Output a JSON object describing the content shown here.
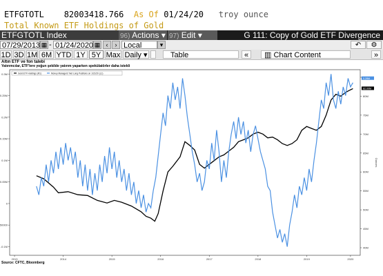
{
  "header": {
    "ticker": "ETFGTOTL",
    "value": "82003418.766",
    "as_of_label": "As Of",
    "as_of_date": "01/24/20",
    "unit": "troy ounce",
    "subtitle": "Total Known ETF Holdings of Gold"
  },
  "toolbar": {
    "index_label": "ETFGTOTL Index",
    "actions_num": "96)",
    "actions_label": "Actions",
    "edit_num": "97)",
    "edit_label": "Edit",
    "title": "G 111: Copy of Gold ETF Divergence"
  },
  "range": {
    "start": "07/29/2013",
    "end": "01/24/2020",
    "currency": "Local CCY"
  },
  "periods": [
    "1D",
    "3D",
    "1M",
    "6M",
    "YTD",
    "1Y",
    "5Y",
    "Max"
  ],
  "selected_period": "5Y",
  "frequency": "Daily",
  "table_tab": "Table",
  "chart_tab": "Chart Content",
  "chart_header": {
    "title": "Altın ETF ve fon talebi",
    "subtitle": "Yatırımcılar, ETF'lere yoğun şekilde yatırım yaparken spekülatörler daha istekli"
  },
  "source": "Source: CFTC, Bloomberg",
  "chart_data": {
    "type": "line",
    "legend": [
      {
        "name": "Gold ETF Holdings (R1)",
        "color": "#000000"
      },
      {
        "name": "Money Managers' Net Long Positions  on 1/21/20 (L1)",
        "color": "#4a90e2"
      }
    ],
    "x_ticks": [
      "2013",
      "2014",
      "2015",
      "2016",
      "2017",
      "2018",
      "2019",
      "2020"
    ],
    "left_ticks": [
      "0.3M",
      "0.25M",
      "0.2M",
      "0.15M",
      "0.1M",
      "0.05M",
      "0",
      "-50000",
      "-0.1M"
    ],
    "right_ticks": [
      "85M",
      "80M",
      "75M",
      "70M",
      "65M",
      "60M",
      "55M",
      "50M",
      "45M",
      "40M"
    ],
    "right_axis_label": "Ounces",
    "left_range": [
      -0.12,
      0.31
    ],
    "right_range": [
      38,
      87
    ],
    "last_values": {
      "etf": "82.00M",
      "net_long": "0.28M"
    },
    "series": [
      {
        "name": "Gold ETF Holdings (R1)",
        "axis": "right",
        "color": "#000000",
        "points": [
          [
            2013.55,
            59.0
          ],
          [
            2013.7,
            58.2
          ],
          [
            2013.9,
            56.0
          ],
          [
            2014.0,
            54.5
          ],
          [
            2014.2,
            54.8
          ],
          [
            2014.4,
            54.0
          ],
          [
            2014.6,
            53.8
          ],
          [
            2014.8,
            52.5
          ],
          [
            2015.0,
            51.8
          ],
          [
            2015.15,
            52.5
          ],
          [
            2015.3,
            52.0
          ],
          [
            2015.5,
            51.0
          ],
          [
            2015.7,
            49.5
          ],
          [
            2015.8,
            48.3
          ],
          [
            2015.9,
            47.8
          ],
          [
            2015.98,
            47.0
          ],
          [
            2016.05,
            49.0
          ],
          [
            2016.15,
            55.0
          ],
          [
            2016.25,
            60.0
          ],
          [
            2016.35,
            61.5
          ],
          [
            2016.5,
            64.0
          ],
          [
            2016.6,
            68.0
          ],
          [
            2016.7,
            67.0
          ],
          [
            2016.8,
            65.8
          ],
          [
            2016.9,
            62.0
          ],
          [
            2017.0,
            61.0
          ],
          [
            2017.1,
            62.0
          ],
          [
            2017.2,
            63.0
          ],
          [
            2017.3,
            64.0
          ],
          [
            2017.4,
            64.5
          ],
          [
            2017.5,
            65.5
          ],
          [
            2017.6,
            66.5
          ],
          [
            2017.7,
            68.0
          ],
          [
            2017.8,
            68.5
          ],
          [
            2017.9,
            69.0
          ],
          [
            2018.0,
            70.0
          ],
          [
            2018.1,
            70.5
          ],
          [
            2018.2,
            70.0
          ],
          [
            2018.3,
            69.0
          ],
          [
            2018.4,
            69.2
          ],
          [
            2018.5,
            68.5
          ],
          [
            2018.6,
            67.5
          ],
          [
            2018.7,
            67.0
          ],
          [
            2018.8,
            67.5
          ],
          [
            2018.9,
            68.5
          ],
          [
            2019.0,
            71.0
          ],
          [
            2019.1,
            72.0
          ],
          [
            2019.2,
            71.5
          ],
          [
            2019.3,
            71.0
          ],
          [
            2019.4,
            72.0
          ],
          [
            2019.5,
            75.0
          ],
          [
            2019.6,
            79.0
          ],
          [
            2019.7,
            80.5
          ],
          [
            2019.8,
            80.0
          ],
          [
            2019.9,
            81.0
          ],
          [
            2019.97,
            81.5
          ],
          [
            2020.05,
            82.0
          ]
        ]
      },
      {
        "name": "Money Managers' Net Long Positions  on 1/21/20 (L1)",
        "axis": "left",
        "color": "#4a90e2",
        "points": [
          [
            2013.55,
            0.04
          ],
          [
            2013.6,
            0.02
          ],
          [
            2013.65,
            0.06
          ],
          [
            2013.7,
            0.04
          ],
          [
            2013.75,
            0.09
          ],
          [
            2013.8,
            0.05
          ],
          [
            2013.85,
            0.1
          ],
          [
            2013.9,
            0.07
          ],
          [
            2013.95,
            0.12
          ],
          [
            2014.0,
            0.08
          ],
          [
            2014.05,
            0.13
          ],
          [
            2014.1,
            0.09
          ],
          [
            2014.15,
            0.14
          ],
          [
            2014.2,
            0.1
          ],
          [
            2014.25,
            0.13
          ],
          [
            2014.3,
            0.09
          ],
          [
            2014.35,
            0.12
          ],
          [
            2014.4,
            0.06
          ],
          [
            2014.45,
            0.1
          ],
          [
            2014.5,
            0.04
          ],
          [
            2014.55,
            0.09
          ],
          [
            2014.6,
            0.03
          ],
          [
            2014.65,
            0.08
          ],
          [
            2014.7,
            0.02
          ],
          [
            2014.75,
            0.07
          ],
          [
            2014.8,
            0.03
          ],
          [
            2014.85,
            0.09
          ],
          [
            2014.9,
            0.05
          ],
          [
            2014.95,
            0.11
          ],
          [
            2015.0,
            0.07
          ],
          [
            2015.05,
            0.13
          ],
          [
            2015.1,
            0.08
          ],
          [
            2015.15,
            0.12
          ],
          [
            2015.2,
            0.06
          ],
          [
            2015.25,
            0.1
          ],
          [
            2015.3,
            0.05
          ],
          [
            2015.35,
            0.08
          ],
          [
            2015.4,
            0.03
          ],
          [
            2015.45,
            0.07
          ],
          [
            2015.5,
            0.02
          ],
          [
            2015.55,
            0.05
          ],
          [
            2015.6,
            0.0
          ],
          [
            2015.65,
            0.03
          ],
          [
            2015.7,
            -0.01
          ],
          [
            2015.75,
            0.02
          ],
          [
            2015.8,
            -0.02
          ],
          [
            2015.85,
            0.0
          ],
          [
            2015.9,
            -0.01
          ],
          [
            2015.95,
            0.03
          ],
          [
            2016.0,
            0.06
          ],
          [
            2016.05,
            0.11
          ],
          [
            2016.1,
            0.16
          ],
          [
            2016.15,
            0.21
          ],
          [
            2016.2,
            0.18
          ],
          [
            2016.25,
            0.25
          ],
          [
            2016.3,
            0.22
          ],
          [
            2016.35,
            0.28
          ],
          [
            2016.4,
            0.24
          ],
          [
            2016.45,
            0.27
          ],
          [
            2016.5,
            0.22
          ],
          [
            2016.55,
            0.29
          ],
          [
            2016.6,
            0.25
          ],
          [
            2016.65,
            0.2
          ],
          [
            2016.7,
            0.16
          ],
          [
            2016.75,
            0.12
          ],
          [
            2016.8,
            0.09
          ],
          [
            2016.85,
            0.05
          ],
          [
            2016.9,
            0.07
          ],
          [
            2016.95,
            0.03
          ],
          [
            2017.0,
            0.05
          ],
          [
            2017.05,
            0.1
          ],
          [
            2017.1,
            0.08
          ],
          [
            2017.15,
            0.14
          ],
          [
            2017.2,
            0.1
          ],
          [
            2017.25,
            0.17
          ],
          [
            2017.3,
            0.12
          ],
          [
            2017.35,
            0.05
          ],
          [
            2017.4,
            0.1
          ],
          [
            2017.45,
            0.06
          ],
          [
            2017.5,
            0.12
          ],
          [
            2017.55,
            0.16
          ],
          [
            2017.6,
            0.19
          ],
          [
            2017.65,
            0.15
          ],
          [
            2017.7,
            0.2
          ],
          [
            2017.75,
            0.16
          ],
          [
            2017.8,
            0.19
          ],
          [
            2017.85,
            0.14
          ],
          [
            2017.9,
            0.17
          ],
          [
            2017.95,
            0.12
          ],
          [
            2018.0,
            0.16
          ],
          [
            2018.05,
            0.18
          ],
          [
            2018.1,
            0.15
          ],
          [
            2018.15,
            0.12
          ],
          [
            2018.2,
            0.1
          ],
          [
            2018.25,
            0.08
          ],
          [
            2018.3,
            0.04
          ],
          [
            2018.35,
            0.03
          ],
          [
            2018.4,
            -0.02
          ],
          [
            2018.45,
            -0.05
          ],
          [
            2018.5,
            -0.08
          ],
          [
            2018.55,
            -0.06
          ],
          [
            2018.6,
            -0.09
          ],
          [
            2018.65,
            -0.07
          ],
          [
            2018.7,
            -0.1
          ],
          [
            2018.75,
            -0.05
          ],
          [
            2018.8,
            -0.02
          ],
          [
            2018.85,
            0.02
          ],
          [
            2018.9,
            -0.01
          ],
          [
            2018.95,
            0.04
          ],
          [
            2019.0,
            0.02
          ],
          [
            2019.05,
            0.06
          ],
          [
            2019.1,
            0.03
          ],
          [
            2019.15,
            0.08
          ],
          [
            2019.2,
            0.05
          ],
          [
            2019.25,
            0.1
          ],
          [
            2019.3,
            0.14
          ],
          [
            2019.35,
            0.19
          ],
          [
            2019.4,
            0.24
          ],
          [
            2019.45,
            0.22
          ],
          [
            2019.5,
            0.28
          ],
          [
            2019.55,
            0.25
          ],
          [
            2019.6,
            0.3
          ],
          [
            2019.65,
            0.24
          ],
          [
            2019.7,
            0.22
          ],
          [
            2019.75,
            0.26
          ],
          [
            2019.8,
            0.23
          ],
          [
            2019.85,
            0.27
          ],
          [
            2019.9,
            0.25
          ],
          [
            2019.95,
            0.29
          ],
          [
            2020.0,
            0.27
          ],
          [
            2020.05,
            0.28
          ]
        ]
      }
    ]
  }
}
